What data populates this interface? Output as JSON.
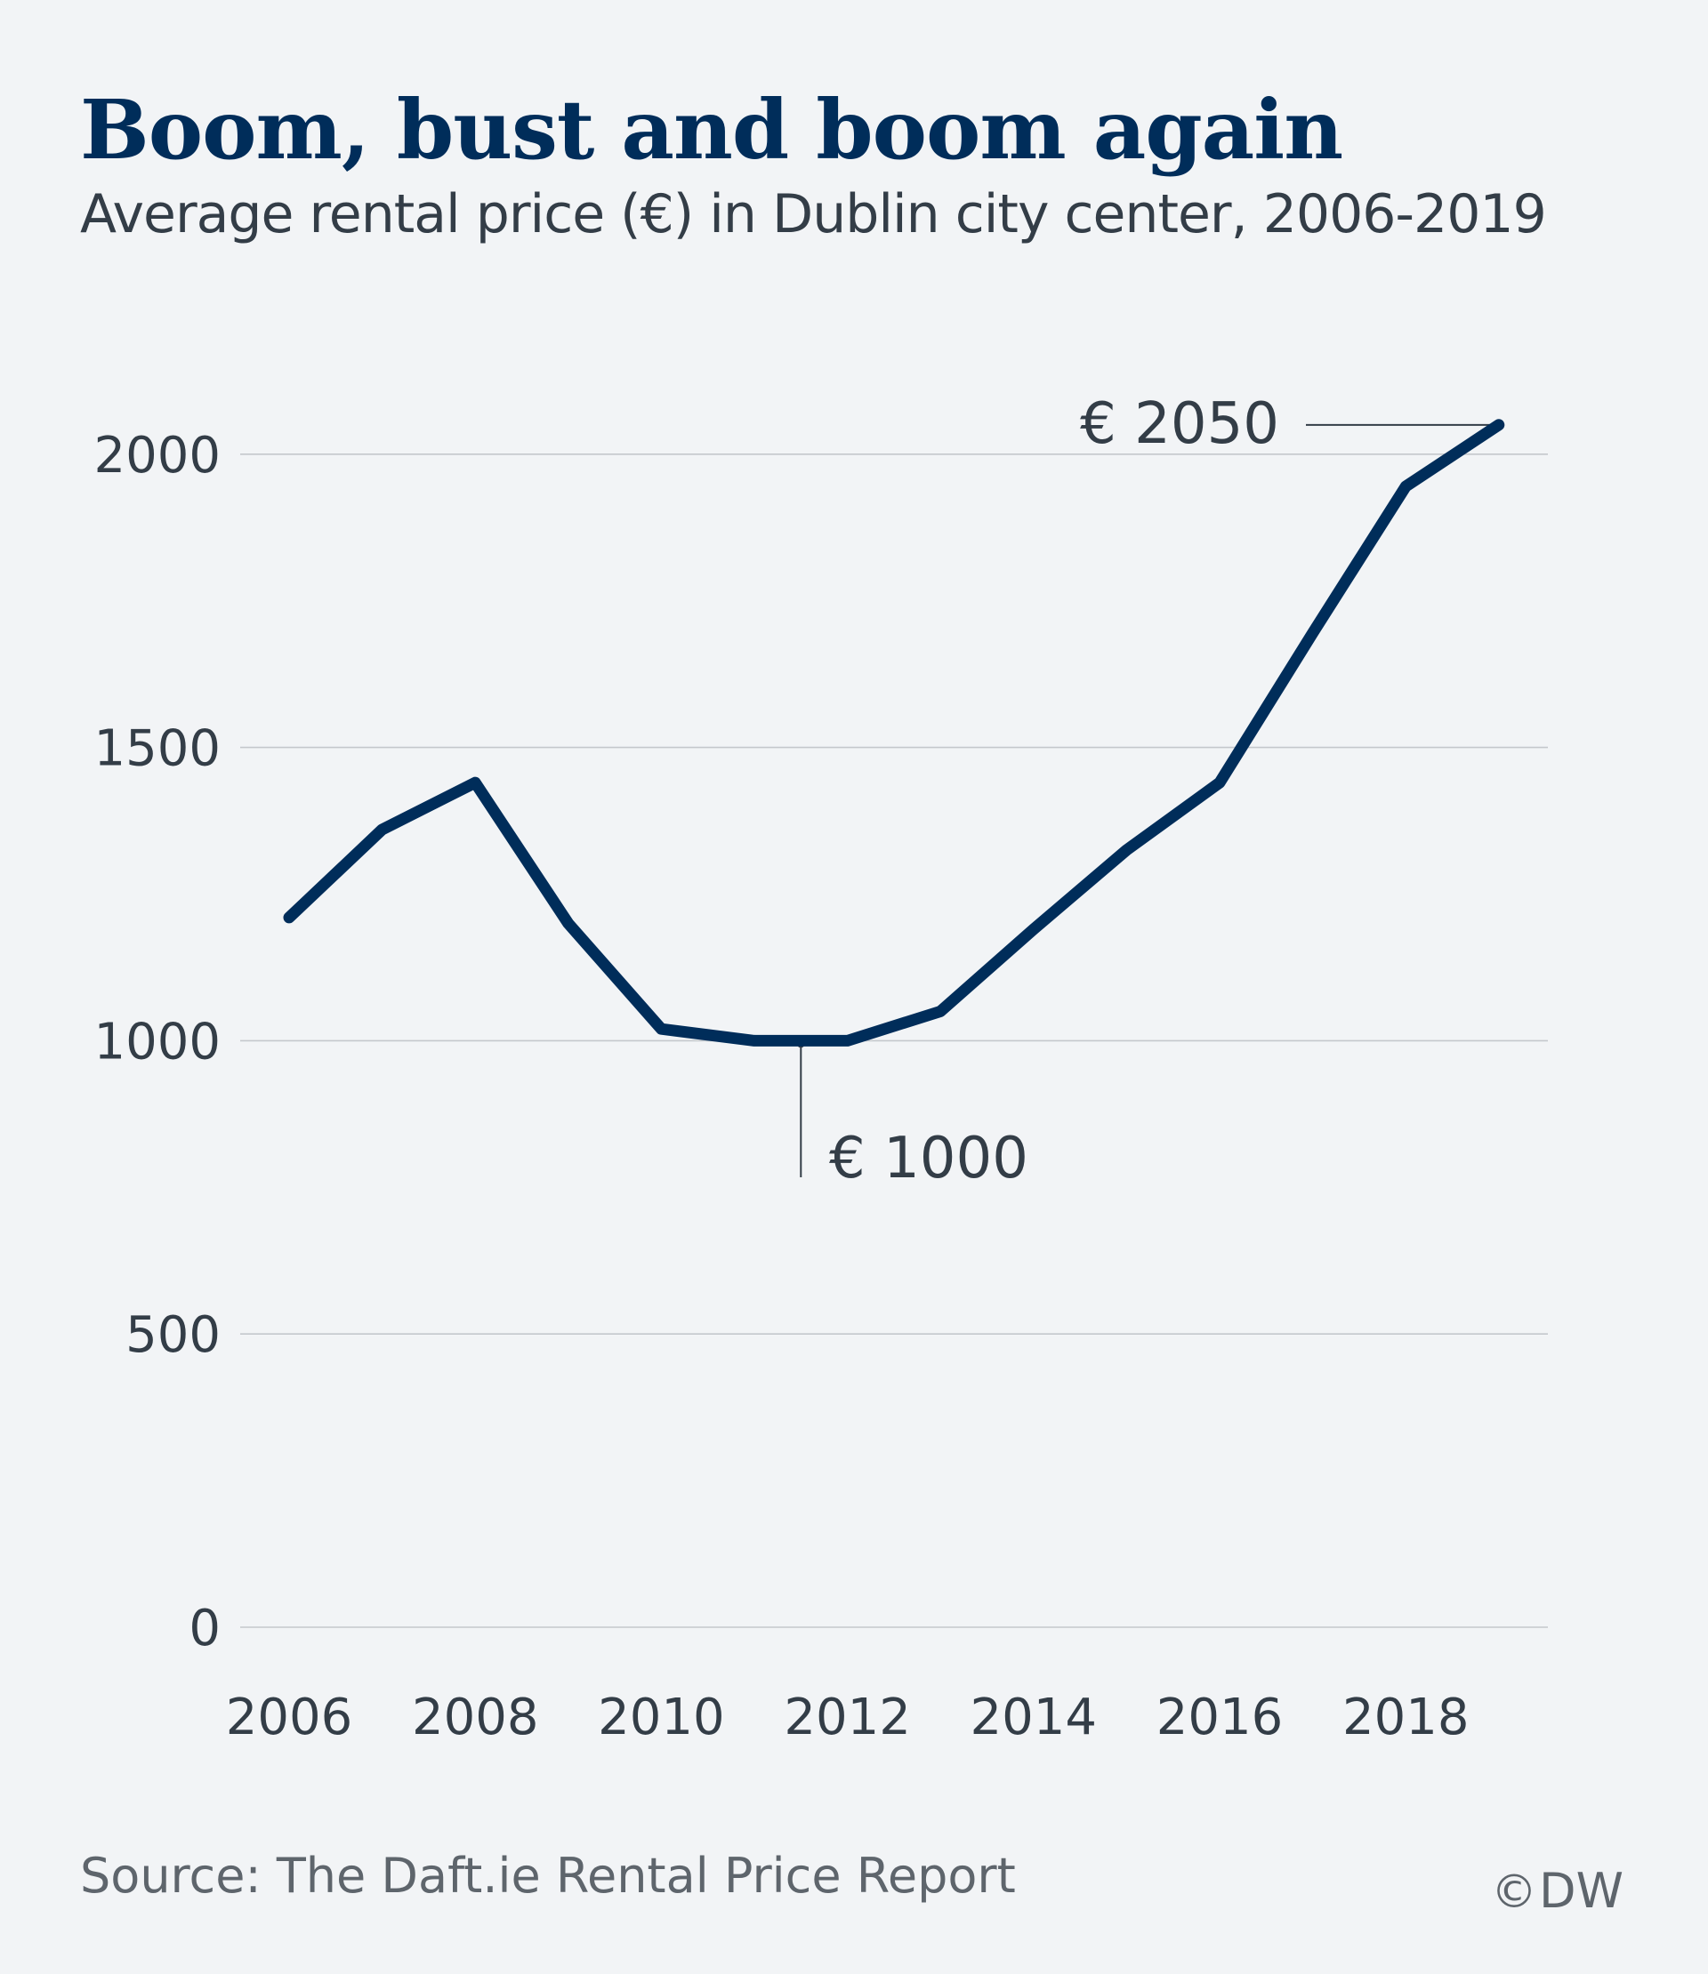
{
  "chart_data": {
    "type": "line",
    "title": "Boom, bust and boom again",
    "subtitle": "Average rental price (€) in Dublin city center, 2006-2019",
    "x": [
      2006,
      2007,
      2008,
      2009,
      2010,
      2011,
      2012,
      2013,
      2014,
      2015,
      2016,
      2017,
      2018,
      2019
    ],
    "series": [
      {
        "values": [
          1210,
          1360,
          1440,
          1200,
          1020,
          1000,
          1000,
          1050,
          1190,
          1325,
          1440,
          1695,
          1945,
          2050
        ],
        "color": "#002d5a"
      }
    ],
    "xticks": [
      "2006",
      "2008",
      "2010",
      "2012",
      "2014",
      "2016",
      "2018"
    ],
    "yticks": [
      "0",
      "500",
      "1000",
      "1500",
      "2000"
    ],
    "ylim": [
      0,
      2050
    ],
    "xlim": [
      2006,
      2019
    ],
    "grid": "horizontal",
    "annotations": [
      {
        "text": "€ 2050",
        "x": 2019,
        "y": 2050
      },
      {
        "text": "€ 1000",
        "x": 2011.5,
        "y": 1000
      }
    ],
    "source": "Source: The Daft.ie Rental Price Report",
    "credit_symbol": "©",
    "credit": "DW"
  }
}
